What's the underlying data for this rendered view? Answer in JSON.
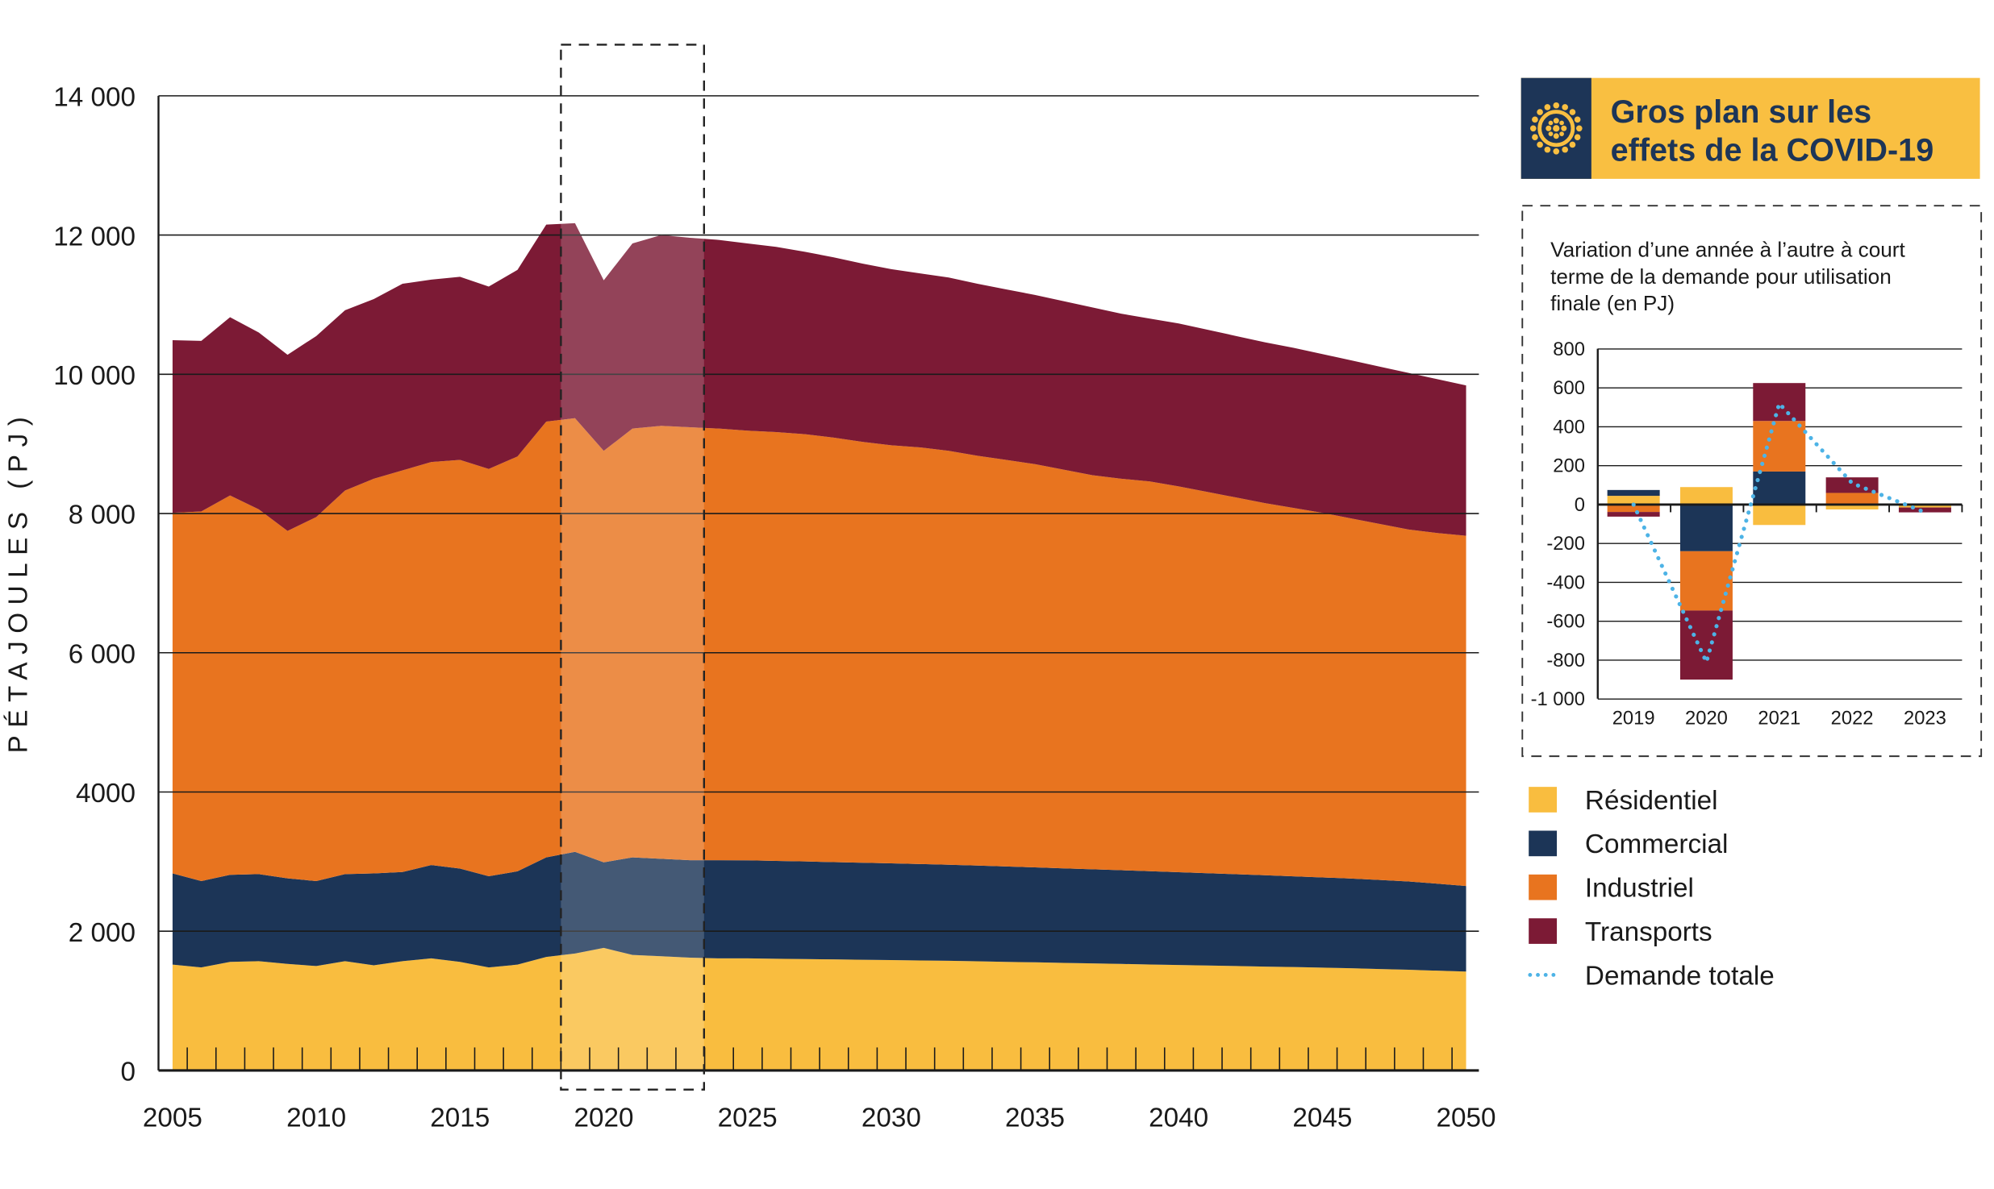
{
  "colors": {
    "residential": "#f9bd3f",
    "commercial": "#1c3557",
    "industrial": "#e8741f",
    "transports": "#7c1a35",
    "total_demand": "#4db3e6",
    "header_bg": "#f9bf41",
    "header_icon_bg": "#1d3557"
  },
  "header": {
    "icon": "covid-virus-icon",
    "title_line1": "Gros plan sur les",
    "title_line2": "effets de la COVID-19"
  },
  "legend": [
    {
      "label": "Résidentiel",
      "key": "residential",
      "kind": "square"
    },
    {
      "label": "Commercial",
      "key": "commercial",
      "kind": "square"
    },
    {
      "label": "Industriel",
      "key": "industrial",
      "kind": "square"
    },
    {
      "label": "Transports",
      "key": "transports",
      "kind": "square"
    },
    {
      "label": "Demande totale",
      "key": "total_demand",
      "kind": "dotted-line"
    }
  ],
  "chart_data": [
    {
      "type": "area",
      "stacked": true,
      "ylabel": "PÉTAJOULES (PJ)",
      "ylim": [
        0,
        14000
      ],
      "ytick_labels": [
        "0",
        "2 000",
        "4000",
        "6 000",
        "8 000",
        "10 000",
        "12 000",
        "14 000"
      ],
      "ytick_values": [
        0,
        2000,
        4000,
        6000,
        8000,
        10000,
        12000,
        14000
      ],
      "xlim": [
        2005,
        2050
      ],
      "xtick_labels": [
        "2005",
        "2010",
        "2015",
        "2020",
        "2025",
        "2030",
        "2035",
        "2040",
        "2045",
        "2050"
      ],
      "grid": "horizontal",
      "highlight_range": [
        2019,
        2023
      ],
      "x": [
        2005,
        2006,
        2007,
        2008,
        2009,
        2010,
        2011,
        2012,
        2013,
        2014,
        2015,
        2016,
        2017,
        2018,
        2019,
        2020,
        2021,
        2022,
        2023,
        2024,
        2025,
        2026,
        2027,
        2028,
        2029,
        2030,
        2031,
        2032,
        2033,
        2034,
        2035,
        2036,
        2037,
        2038,
        2039,
        2040,
        2041,
        2042,
        2043,
        2044,
        2045,
        2046,
        2047,
        2048,
        2049,
        2050
      ],
      "series": [
        {
          "name": "Résidentiel",
          "key": "residential",
          "values": [
            1520,
            1480,
            1560,
            1570,
            1530,
            1500,
            1570,
            1510,
            1570,
            1610,
            1560,
            1480,
            1520,
            1630,
            1680,
            1760,
            1660,
            1640,
            1620,
            1610,
            1610,
            1605,
            1600,
            1595,
            1590,
            1585,
            1580,
            1575,
            1568,
            1560,
            1553,
            1545,
            1538,
            1530,
            1522,
            1515,
            1507,
            1500,
            1492,
            1485,
            1477,
            1468,
            1457,
            1446,
            1433,
            1420
          ]
        },
        {
          "name": "Commercial",
          "key": "commercial",
          "values": [
            1310,
            1240,
            1250,
            1250,
            1230,
            1220,
            1250,
            1320,
            1280,
            1340,
            1340,
            1310,
            1340,
            1430,
            1460,
            1230,
            1400,
            1400,
            1400,
            1410,
            1408,
            1405,
            1402,
            1398,
            1394,
            1390,
            1385,
            1380,
            1375,
            1370,
            1364,
            1358,
            1352,
            1346,
            1340,
            1333,
            1326,
            1319,
            1312,
            1304,
            1296,
            1288,
            1279,
            1268,
            1250,
            1230
          ]
        },
        {
          "name": "Industriel",
          "key": "industrial",
          "values": [
            5180,
            5310,
            5450,
            5240,
            4990,
            5230,
            5510,
            5670,
            5770,
            5790,
            5870,
            5850,
            5960,
            6260,
            6230,
            5910,
            6160,
            6220,
            6220,
            6200,
            6172,
            6160,
            6138,
            6097,
            6046,
            6005,
            5985,
            5945,
            5887,
            5840,
            5793,
            5727,
            5660,
            5624,
            5598,
            5542,
            5477,
            5411,
            5346,
            5291,
            5237,
            5174,
            5114,
            5056,
            5037,
            5030
          ]
        },
        {
          "name": "Transports",
          "key": "transports",
          "values": [
            2480,
            2450,
            2560,
            2540,
            2530,
            2600,
            2590,
            2580,
            2680,
            2620,
            2630,
            2620,
            2680,
            2830,
            2800,
            2450,
            2660,
            2740,
            2720,
            2710,
            2690,
            2660,
            2620,
            2590,
            2560,
            2530,
            2500,
            2490,
            2470,
            2450,
            2430,
            2420,
            2410,
            2370,
            2340,
            2340,
            2330,
            2320,
            2310,
            2300,
            2280,
            2270,
            2260,
            2250,
            2210,
            2160
          ]
        }
      ]
    },
    {
      "type": "bar",
      "stacked": true,
      "title": "Variation d’une année à l’autre à court terme de la demande pour utilisation finale (en PJ)",
      "title_lines": [
        "Variation d’une année à l’autre à court",
        "terme de la demande pour utilisation",
        "finale (en PJ)"
      ],
      "ylim": [
        -1000,
        800
      ],
      "ytick_labels": [
        "800",
        "600",
        "400",
        "200",
        "0",
        "-200",
        "-400",
        "-600",
        "-800",
        "-1 000"
      ],
      "ytick_values": [
        800,
        600,
        400,
        200,
        0,
        -200,
        -400,
        -600,
        -800,
        -1000
      ],
      "categories": [
        "2019",
        "2020",
        "2021",
        "2022",
        "2023"
      ],
      "grid": "horizontal",
      "series": [
        {
          "name": "Résidentiel",
          "key": "residential",
          "values": [
            45,
            90,
            -105,
            -25,
            -15
          ]
        },
        {
          "name": "Commercial",
          "key": "commercial",
          "values": [
            30,
            -240,
            170,
            0,
            0
          ]
        },
        {
          "name": "Industriel",
          "key": "industrial",
          "values": [
            -38,
            -305,
            260,
            60,
            0
          ]
        },
        {
          "name": "Transports",
          "key": "transports",
          "values": [
            -24,
            -355,
            195,
            80,
            -25
          ]
        }
      ],
      "line": {
        "name": "Demande totale",
        "key": "total_demand",
        "style": "dotted",
        "values": [
          0,
          -810,
          520,
          110,
          -40
        ]
      }
    }
  ]
}
